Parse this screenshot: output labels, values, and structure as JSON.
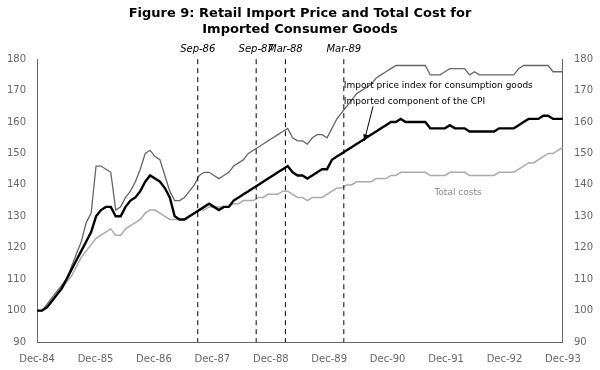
{
  "chart_data": {
    "type": "line",
    "title": [
      "Figure 9: Retail Import Price and Total Cost for",
      "Imported Consumer Goods"
    ],
    "x": [
      0,
      0.084112,
      0.168224,
      0.252336,
      0.336449,
      0.420561,
      0.504673,
      0.588785,
      0.672897,
      0.757009,
      0.841121,
      0.925234,
      1.009346,
      1.093458,
      1.17757,
      1.261682,
      1.345794,
      1.429907,
      1.514019,
      1.598131,
      1.682243,
      1.766355,
      1.850467,
      1.934579,
      2.018692,
      2.102804,
      2.186916,
      2.271028,
      2.35514,
      2.439252,
      2.523364,
      2.607477,
      2.691589,
      2.775701,
      2.859813,
      2.943925,
      3.028037,
      3.11215,
      3.196262,
      3.280374,
      3.364486,
      3.448598,
      3.53271,
      3.616822,
      3.700935,
      3.785047,
      3.869159,
      3.953271,
      4.037383,
      4.121495,
      4.205607,
      4.28972,
      4.373832,
      4.457944,
      4.542056,
      4.626168,
      4.71028,
      4.794393,
      4.878505,
      4.962617,
      5.046729,
      5.130841,
      5.214953,
      5.299065,
      5.383178,
      5.46729,
      5.551402,
      5.635514,
      5.719626,
      5.803738,
      5.88785,
      5.971963,
      6.056075,
      6.140187,
      6.224299,
      6.308411,
      6.392523,
      6.476636,
      6.560748,
      6.64486,
      6.728972,
      6.813084,
      6.897196,
      6.981308,
      7.065421,
      7.149533,
      7.233645,
      7.317757,
      7.401869,
      7.485981,
      7.570093,
      7.654206,
      7.738318,
      7.82243,
      7.906542,
      7.990654,
      8.074766,
      8.158879,
      8.242991,
      8.327103,
      8.411215,
      8.495327,
      8.579439,
      8.663551,
      8.747664,
      8.831776,
      8.915888,
      9
    ],
    "series": [
      {
        "color": "#aaaaaa",
        "values": [
          100,
          100,
          101,
          103,
          105,
          107,
          109,
          111,
          114,
          117,
          119,
          121,
          123,
          124,
          125,
          126,
          124,
          124,
          126,
          127,
          128,
          129,
          131,
          132,
          132,
          131,
          130,
          129,
          129,
          129,
          129,
          130,
          131,
          132,
          132,
          133,
          133,
          133,
          133,
          133,
          134,
          134,
          135,
          135,
          135,
          136,
          136,
          137,
          137,
          137,
          138,
          138,
          137,
          136,
          136,
          135,
          136,
          136,
          136,
          137,
          138,
          139,
          139,
          140,
          140,
          141,
          141,
          141,
          141,
          142,
          142,
          142,
          143,
          143,
          144,
          144,
          144,
          144,
          144,
          144,
          143,
          143,
          143,
          143,
          144,
          144,
          144,
          144,
          143,
          143,
          143,
          143,
          143,
          143,
          144,
          144,
          144,
          144,
          145,
          146,
          147,
          147,
          148,
          149,
          150,
          150,
          151,
          152
        ]
      },
      {
        "color": "#666666",
        "values": [
          100,
          100,
          102,
          104,
          106,
          108,
          110,
          114,
          118,
          122,
          128,
          131,
          146,
          146,
          145,
          144,
          132,
          133,
          136,
          138,
          141,
          145,
          150,
          151,
          149,
          148,
          143,
          138,
          135,
          135,
          136,
          138,
          140,
          143,
          144,
          144,
          143,
          142,
          143,
          144,
          146,
          147,
          148,
          150,
          151,
          152,
          153,
          154,
          155,
          156,
          157,
          158,
          155,
          154,
          154,
          153,
          155,
          156,
          156,
          155,
          158,
          161,
          163,
          165,
          167,
          169,
          170,
          171,
          172,
          174,
          175,
          176,
          177,
          178,
          178,
          178,
          178,
          178,
          178,
          178,
          175,
          175,
          175,
          176,
          177,
          177,
          177,
          177,
          175,
          176,
          175,
          175,
          175,
          175,
          175,
          175,
          175,
          175,
          177,
          178,
          178,
          178,
          178,
          178,
          178,
          176,
          176,
          176
        ]
      },
      {
        "color": "#000000",
        "values": [
          100,
          100,
          101,
          103,
          105,
          107,
          110,
          113,
          116,
          119,
          122,
          125,
          130,
          132,
          133,
          133,
          130,
          130,
          133,
          135,
          136,
          138,
          141,
          143,
          142,
          141,
          139,
          136,
          130,
          129,
          129,
          130,
          131,
          132,
          133,
          134,
          133,
          132,
          133,
          133,
          135,
          136,
          137,
          138,
          139,
          140,
          141,
          142,
          143,
          144,
          145,
          146,
          144,
          143,
          143,
          142,
          143,
          144,
          145,
          145,
          148,
          149,
          150,
          151,
          152,
          153,
          154,
          155,
          156,
          157,
          158,
          159,
          160,
          160,
          161,
          160,
          160,
          160,
          160,
          160,
          158,
          158,
          158,
          158,
          159,
          158,
          158,
          158,
          157,
          157,
          157,
          157,
          157,
          157,
          158,
          158,
          158,
          158,
          159,
          160,
          161,
          161,
          161,
          162,
          162,
          161,
          161,
          161
        ]
      }
    ],
    "xlim": [
      0,
      9
    ],
    "xticks": [
      {
        "value": 0,
        "label": "Dec-84"
      },
      {
        "value": 1,
        "label": "Dec-85"
      },
      {
        "value": 2,
        "label": "Dec-86"
      },
      {
        "value": 3,
        "label": "Dec-87"
      },
      {
        "value": 4,
        "label": "Dec-88"
      },
      {
        "value": 5,
        "label": "Dec-89"
      },
      {
        "value": 6,
        "label": "Dec-90"
      },
      {
        "value": 7,
        "label": "Dec-91"
      },
      {
        "value": 8,
        "label": "Dec-92"
      },
      {
        "value": 9,
        "label": "Dec-93"
      }
    ],
    "ylim": [
      90,
      180
    ],
    "yticks": [
      90,
      100,
      110,
      120,
      130,
      140,
      150,
      160,
      170,
      180
    ],
    "y2lim": [
      90,
      180
    ],
    "y2ticks": [
      90,
      100,
      110,
      120,
      130,
      140,
      150,
      160,
      170,
      180
    ],
    "vlines": [
      {
        "x": 2.75,
        "label": "Sep-86"
      },
      {
        "x": 3.75,
        "label": "Sep-87"
      },
      {
        "x": 4.25,
        "label": "Mar-88"
      },
      {
        "x": 5.25,
        "label": "Mar-89"
      }
    ],
    "annotations": [
      {
        "text": "Import price index for consumption goods",
        "x": 5.25,
        "y": 173,
        "color": "#000000"
      },
      {
        "text": "Imported component of the CPI",
        "x": 5.25,
        "y": 168,
        "color": "#000000"
      },
      {
        "text": "Total costs",
        "x": 6.8,
        "y": 139,
        "color": "#888888"
      }
    ],
    "arrows": [
      {
        "from": [
          5.75,
          165
        ],
        "to": [
          5.6,
          154
        ]
      }
    ],
    "grid": false
  }
}
